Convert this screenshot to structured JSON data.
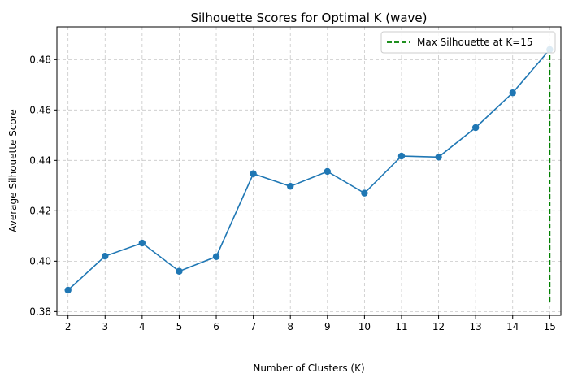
{
  "chart_data": {
    "type": "line",
    "title": "Silhouette Scores for Optimal K (wave)",
    "xlabel": "Number of Clusters (K)",
    "ylabel": "Average Silhouette Score",
    "x": [
      2,
      3,
      4,
      5,
      6,
      7,
      8,
      9,
      10,
      11,
      12,
      13,
      14,
      15
    ],
    "xlim": [
      1.7,
      15.3
    ],
    "ylim": [
      0.3785,
      0.493
    ],
    "xticks": [
      "2",
      "3",
      "4",
      "5",
      "6",
      "7",
      "8",
      "9",
      "10",
      "11",
      "12",
      "13",
      "14",
      "15"
    ],
    "yticks": [
      0.38,
      0.4,
      0.42,
      0.44,
      0.46,
      0.48
    ],
    "ytick_labels": [
      "0.38",
      "0.40",
      "0.42",
      "0.44",
      "0.46",
      "0.48"
    ],
    "grid": true,
    "series": [
      {
        "color": "#1f77b4",
        "marker": "circle",
        "values": [
          0.3885,
          0.402,
          0.4072,
          0.396,
          0.4018,
          0.4347,
          0.4297,
          0.4356,
          0.427,
          0.4417,
          0.4413,
          0.453,
          0.4668,
          0.484
        ]
      }
    ],
    "vline": {
      "x": 15,
      "y_from": 0.384,
      "y_to": 0.484,
      "color": "#008000",
      "style": "dashed",
      "legend_label": "Max Silhouette at K=15"
    },
    "legend_position": "top-right"
  }
}
